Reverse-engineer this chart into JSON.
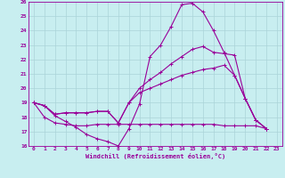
{
  "xlabel": "Windchill (Refroidissement éolien,°C)",
  "ylabel": "",
  "bg_color": "#c8eef0",
  "line_color": "#990099",
  "grid_color": "#aad4d8",
  "xlim": [
    -0.5,
    23.5
  ],
  "ylim": [
    16,
    26
  ],
  "xticks": [
    0,
    1,
    2,
    3,
    4,
    5,
    6,
    7,
    8,
    9,
    10,
    11,
    12,
    13,
    14,
    15,
    16,
    17,
    18,
    19,
    20,
    21,
    22,
    23
  ],
  "yticks": [
    16,
    17,
    18,
    19,
    20,
    21,
    22,
    23,
    24,
    25,
    26
  ],
  "series": [
    [
      19.0,
      18.8,
      18.1,
      17.7,
      17.3,
      16.8,
      16.5,
      16.3,
      16.0,
      17.2,
      18.9,
      22.2,
      23.0,
      24.3,
      25.8,
      25.9,
      25.3,
      24.0,
      22.5,
      20.9,
      19.3,
      17.8,
      17.2
    ],
    [
      19.0,
      18.8,
      18.2,
      18.3,
      18.3,
      18.3,
      18.4,
      18.4,
      17.6,
      19.0,
      20.0,
      20.6,
      21.1,
      21.7,
      22.2,
      22.7,
      22.9,
      22.5,
      22.4,
      22.3,
      19.3,
      17.8,
      17.2
    ],
    [
      19.0,
      18.8,
      18.2,
      18.3,
      18.3,
      18.3,
      18.4,
      18.4,
      17.6,
      19.0,
      19.7,
      20.0,
      20.3,
      20.6,
      20.9,
      21.1,
      21.3,
      21.4,
      21.6,
      20.9,
      19.3,
      17.8,
      17.2
    ],
    [
      19.0,
      18.0,
      17.6,
      17.5,
      17.4,
      17.4,
      17.5,
      17.5,
      17.5,
      17.5,
      17.5,
      17.5,
      17.5,
      17.5,
      17.5,
      17.5,
      17.5,
      17.5,
      17.4,
      17.4,
      17.4,
      17.4,
      17.2
    ]
  ],
  "series_x": [
    0,
    1,
    2,
    3,
    4,
    5,
    6,
    7,
    8,
    9,
    10,
    11,
    12,
    13,
    14,
    15,
    16,
    17,
    18,
    19,
    20,
    21,
    22
  ],
  "tick_fontsize": 4.5,
  "xlabel_fontsize": 5.0
}
